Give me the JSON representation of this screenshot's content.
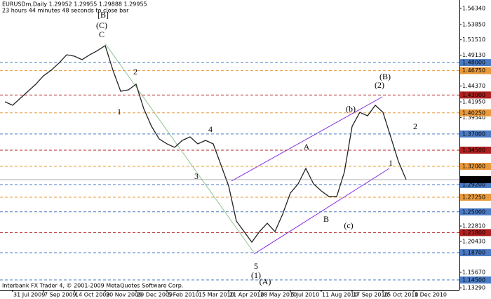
{
  "chart_data": {
    "type": "line",
    "title": "EURUSDm,Daily  1.29952 1.29955 1.29888 1.29955",
    "subtitle": "23 hours 44 minutes 48 seconds to close bar",
    "footer": "Interbank FX Trader 4, © 2001-2009 MetaQuotes Software Corp.",
    "color": "#222222",
    "categories": [
      null,
      "31 Jul 2009",
      null,
      null,
      null,
      "7 Sep 2009",
      null,
      null,
      null,
      "14 Oct 2009",
      null,
      null,
      null,
      "20 Nov 2009",
      null,
      null,
      null,
      "29 Dec 2009",
      null,
      null,
      null,
      "5 Feb 2010",
      null,
      null,
      null,
      "15 Mar 2010",
      null,
      null,
      null,
      "21 Apr 2010",
      null,
      null,
      null,
      "28 May 2010",
      null,
      null,
      null,
      "5 Jul 2010",
      null,
      null,
      null,
      "11 Aug 2010",
      null,
      null,
      null,
      "17 Sep 2010",
      null,
      null,
      null,
      "25 Oct 2010",
      null,
      null,
      null,
      "1 Dec 2010"
    ],
    "values": [
      1.4196,
      1.4142,
      1.425,
      1.4358,
      1.4466,
      1.4596,
      1.4682,
      1.4791,
      1.492,
      1.4899,
      1.4845,
      1.492,
      1.4985,
      1.5061,
      1.4682,
      1.4358,
      1.4379,
      1.4466,
      1.4087,
      1.3817,
      1.3622,
      1.3547,
      1.3493,
      1.3601,
      1.3655,
      1.3547,
      1.3601,
      1.3547,
      1.3222,
      1.2898,
      1.2357,
      1.2195,
      1.2032,
      1.2195,
      1.2324,
      1.2195,
      1.2465,
      1.279,
      1.293,
      1.3168,
      1.293,
      1.2822,
      1.2735,
      1.2735,
      1.3114,
      1.3817,
      1.4033,
      1.3979,
      1.4142,
      1.4033,
      1.3655,
      1.3276,
      1.29955,
      null
    ],
    "ylim": [
      1.1297,
      1.5764
    ],
    "yticks": [
      {
        "value": 1.5634,
        "label": "1.56340"
      },
      {
        "value": 1.5385,
        "label": "1.53850"
      },
      {
        "value": 1.5151,
        "label": "1.51510"
      },
      {
        "value": 1.4913,
        "label": "1.49130"
      },
      {
        "value": 1.4437,
        "label": "1.44370"
      },
      {
        "value": 1.4195,
        "label": "1.41950"
      },
      {
        "value": 1.3954,
        "label": "1.39540"
      },
      {
        "value": 1.2281,
        "label": "1.22810"
      },
      {
        "value": 1.2043,
        "label": "1.20430"
      },
      {
        "value": 1.1567,
        "label": "1.15670"
      },
      {
        "value": 1.1329,
        "label": "1.13290"
      }
    ],
    "levels": [
      {
        "value": 1.48,
        "label": "1.48000",
        "color": "#4a7bc4"
      },
      {
        "value": 1.4675,
        "label": "1.46750",
        "color": "#e89a3c"
      },
      {
        "value": 1.43,
        "label": "1.43000",
        "color": "#b02020"
      },
      {
        "value": 1.4025,
        "label": "1.40250",
        "color": "#e89a3c"
      },
      {
        "value": 1.37,
        "label": "1.37000",
        "color": "#4a7bc4"
      },
      {
        "value": 1.345,
        "label": "1.34500",
        "color": "#b02020"
      },
      {
        "value": 1.32,
        "label": "1.32000",
        "color": "#e89a3c"
      },
      {
        "value": 1.292,
        "label": "1.29200",
        "color": "#4a7bc4"
      },
      {
        "value": 1.2725,
        "label": "1.27250",
        "color": "#e89a3c"
      },
      {
        "value": 1.25,
        "label": "1.25000",
        "color": "#4a7bc4"
      },
      {
        "value": 1.218,
        "label": "1.21800",
        "color": "#b02020"
      },
      {
        "value": 1.187,
        "label": "1.18700",
        "color": "#4a7bc4"
      },
      {
        "value": 1.145,
        "label": "1.14500",
        "color": "#4a7bc4"
      }
    ],
    "current": {
      "value": 1.29955,
      "label": "1.29955"
    },
    "annotations": [
      {
        "text": "[B]",
        "color": "#2a3a8a"
      },
      {
        "text": "(C)",
        "color": "#2a3a8a"
      },
      {
        "text": "C",
        "color": "#2a3a8a"
      },
      {
        "text": "2",
        "color": "#2a3a8a"
      },
      {
        "text": "1",
        "color": "#2a3a8a"
      },
      {
        "text": "4",
        "color": "#2a3a8a"
      },
      {
        "text": "3",
        "color": "#2a3a8a"
      },
      {
        "text": "5",
        "color": "#2a3a8a"
      },
      {
        "text": "(1)",
        "color": "#2a3a8a"
      },
      {
        "text": "(A)",
        "color": "#7a2a8a"
      },
      {
        "text": "A",
        "color": "#2a3a8a"
      },
      {
        "text": "B",
        "color": "#2a3a8a"
      },
      {
        "text": "(c)",
        "color": "#a03030"
      },
      {
        "text": "(B)",
        "color": "#7a2a8a"
      },
      {
        "text": "(2)",
        "color": "#2a3a8a"
      },
      {
        "text": "(b)",
        "color": "#2a3a8a"
      },
      {
        "text": "2",
        "color": "#2a3a8a"
      },
      {
        "text": "1",
        "color": "#2a3a8a"
      }
    ]
  }
}
